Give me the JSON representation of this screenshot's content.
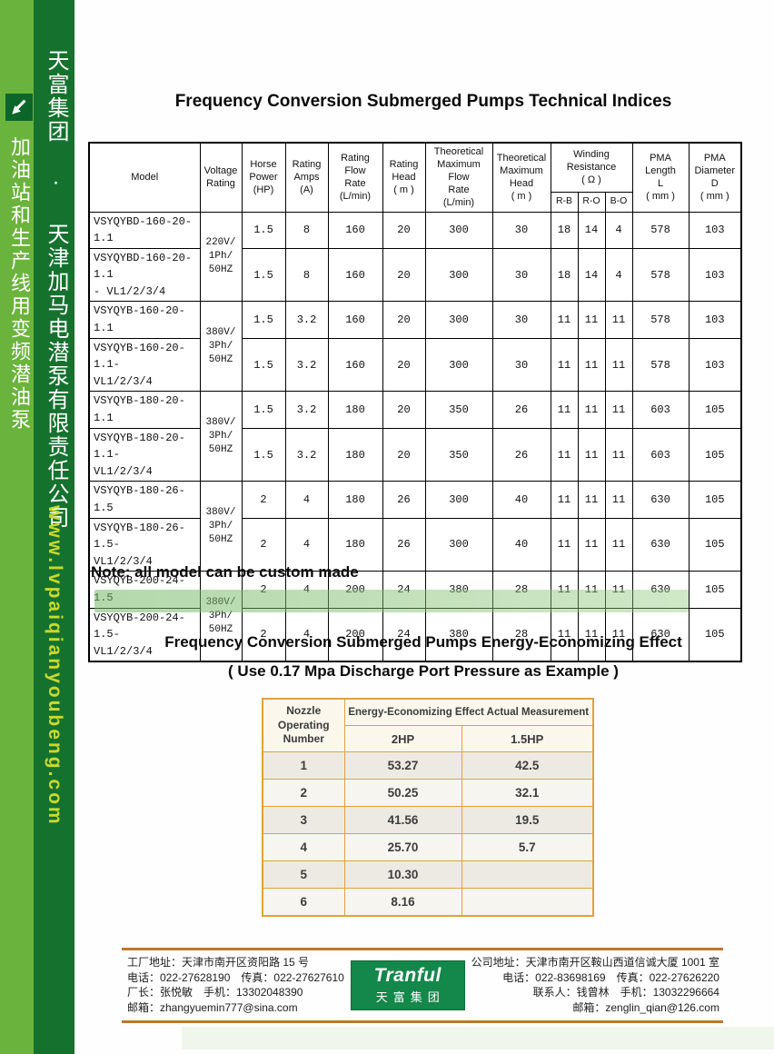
{
  "sidebar": {
    "product_vertical": "加油站和生产线用变频潜油泵",
    "company_vertical": "天富集团 · 天津加马电潜泵有限责任公司",
    "website": "www.lvpaiqianyoubeng.com",
    "colors": {
      "light_strip": "#6ab33c",
      "dark_strip": "#15722e",
      "website_text": "#c9d92e"
    }
  },
  "tech": {
    "title": "Frequency Conversion Submerged Pumps Technical Indices",
    "headers": {
      "model": "Model",
      "voltage": "Voltage\nRating",
      "hp": "Horse\nPower\n(HP)",
      "amps": "Rating\nAmps\n(A)",
      "flow": "Rating\nFlow\nRate\n(L/min)",
      "head": "Rating\nHead\n( m )",
      "theo_flow": "Theoretical\nMaximum\nFlow\nRate\n(L/min)",
      "theo_head": "Theoretical\nMaximum\nHead\n( m )",
      "winding": "Winding\nResistance\n( Ω )",
      "winding_sub": [
        "R-B",
        "R-O",
        "B-O"
      ],
      "pma_l": "PMA\nLength\nL\n( mm )",
      "pma_d": "PMA\nDiameter\nD\n( mm )"
    },
    "voltage_groups": [
      "220V/\n1Ph/\n50HZ",
      "380V/\n3Ph/\n50HZ",
      "380V/\n3Ph/\n50HZ",
      "380V/\n3Ph/\n50HZ",
      "380V/\n3Ph/\n50HZ"
    ],
    "rows": [
      {
        "model": "VSYQYBD-160-20-1.1",
        "values": [
          "1.5",
          "8",
          "160",
          "20",
          "300",
          "30",
          "18",
          "14",
          "4",
          "578",
          "103"
        ]
      },
      {
        "model": "VSYQYBD-160-20-1.1\n- VL1/2/3/4",
        "values": [
          "1.5",
          "8",
          "160",
          "20",
          "300",
          "30",
          "18",
          "14",
          "4",
          "578",
          "103"
        ]
      },
      {
        "model": "VSYQYB-160-20-1.1",
        "values": [
          "1.5",
          "3.2",
          "160",
          "20",
          "300",
          "30",
          "11",
          "11",
          "11",
          "578",
          "103"
        ]
      },
      {
        "model": "VSYQYB-160-20-1.1-\nVL1/2/3/4",
        "values": [
          "1.5",
          "3.2",
          "160",
          "20",
          "300",
          "30",
          "11",
          "11",
          "11",
          "578",
          "103"
        ]
      },
      {
        "model": "VSYQYB-180-20-1.1",
        "values": [
          "1.5",
          "3.2",
          "180",
          "20",
          "350",
          "26",
          "11",
          "11",
          "11",
          "603",
          "105"
        ]
      },
      {
        "model": "VSYQYB-180-20-1.1-\nVL1/2/3/4",
        "values": [
          "1.5",
          "3.2",
          "180",
          "20",
          "350",
          "26",
          "11",
          "11",
          "11",
          "603",
          "105"
        ]
      },
      {
        "model": "VSYQYB-180-26-1.5",
        "values": [
          "2",
          "4",
          "180",
          "26",
          "300",
          "40",
          "11",
          "11",
          "11",
          "630",
          "105"
        ]
      },
      {
        "model": "VSYQYB-180-26-1.5-\nVL1/2/3/4",
        "values": [
          "2",
          "4",
          "180",
          "26",
          "300",
          "40",
          "11",
          "11",
          "11",
          "630",
          "105"
        ]
      },
      {
        "model": "VSYQYB-200-24-1.5",
        "values": [
          "2",
          "4",
          "200",
          "24",
          "380",
          "28",
          "11",
          "11",
          "11",
          "630",
          "105"
        ]
      },
      {
        "model": "VSYQYB-200-24-1.5-\nVL1/2/3/4",
        "values": [
          "2",
          "4",
          "200",
          "24",
          "380",
          "28",
          "11",
          "11",
          "11",
          "630",
          "105"
        ]
      }
    ]
  },
  "note": "Note: all model can be custom made",
  "energy": {
    "title_line1": "Frequency Conversion Submerged Pumps Energy-Economizing Effect",
    "title_line2": "( Use 0.17 Mpa Discharge Port Pressure as Example )",
    "table": {
      "col1_header": "Nozzle\nOperating\nNumber",
      "span_header": "Energy-Economizing Effect Actual Measurement",
      "sub_headers": [
        "2HP",
        "1.5HP"
      ],
      "rows": [
        [
          "1",
          "53.27",
          "42.5"
        ],
        [
          "2",
          "50.25",
          "32.1"
        ],
        [
          "3",
          "41.56",
          "19.5"
        ],
        [
          "4",
          "25.70",
          "5.7"
        ],
        [
          "5",
          "10.30",
          ""
        ],
        [
          "6",
          "8.16",
          ""
        ]
      ]
    }
  },
  "footer": {
    "left_lines": [
      "工厂地址：天津市南开区资阳路 15 号",
      "电话：022-27628190　传真：022-27627610",
      "厂长：张悦敏　手机：13302048390",
      "邮箱：zhangyuemin777@sina.com"
    ],
    "right_lines": [
      "公司地址：天津市南开区鞍山西道信诚大厦 1001 室",
      "电话：022-83698169　传真：022-27626220",
      "联系人：钱曾林　手机：13032296664",
      "邮箱：zenglin_qian@126.com"
    ],
    "logo": {
      "en": "Tranful",
      "cn": "天富集团",
      "color": "#14874a"
    },
    "rule_color": "#c0772a"
  }
}
